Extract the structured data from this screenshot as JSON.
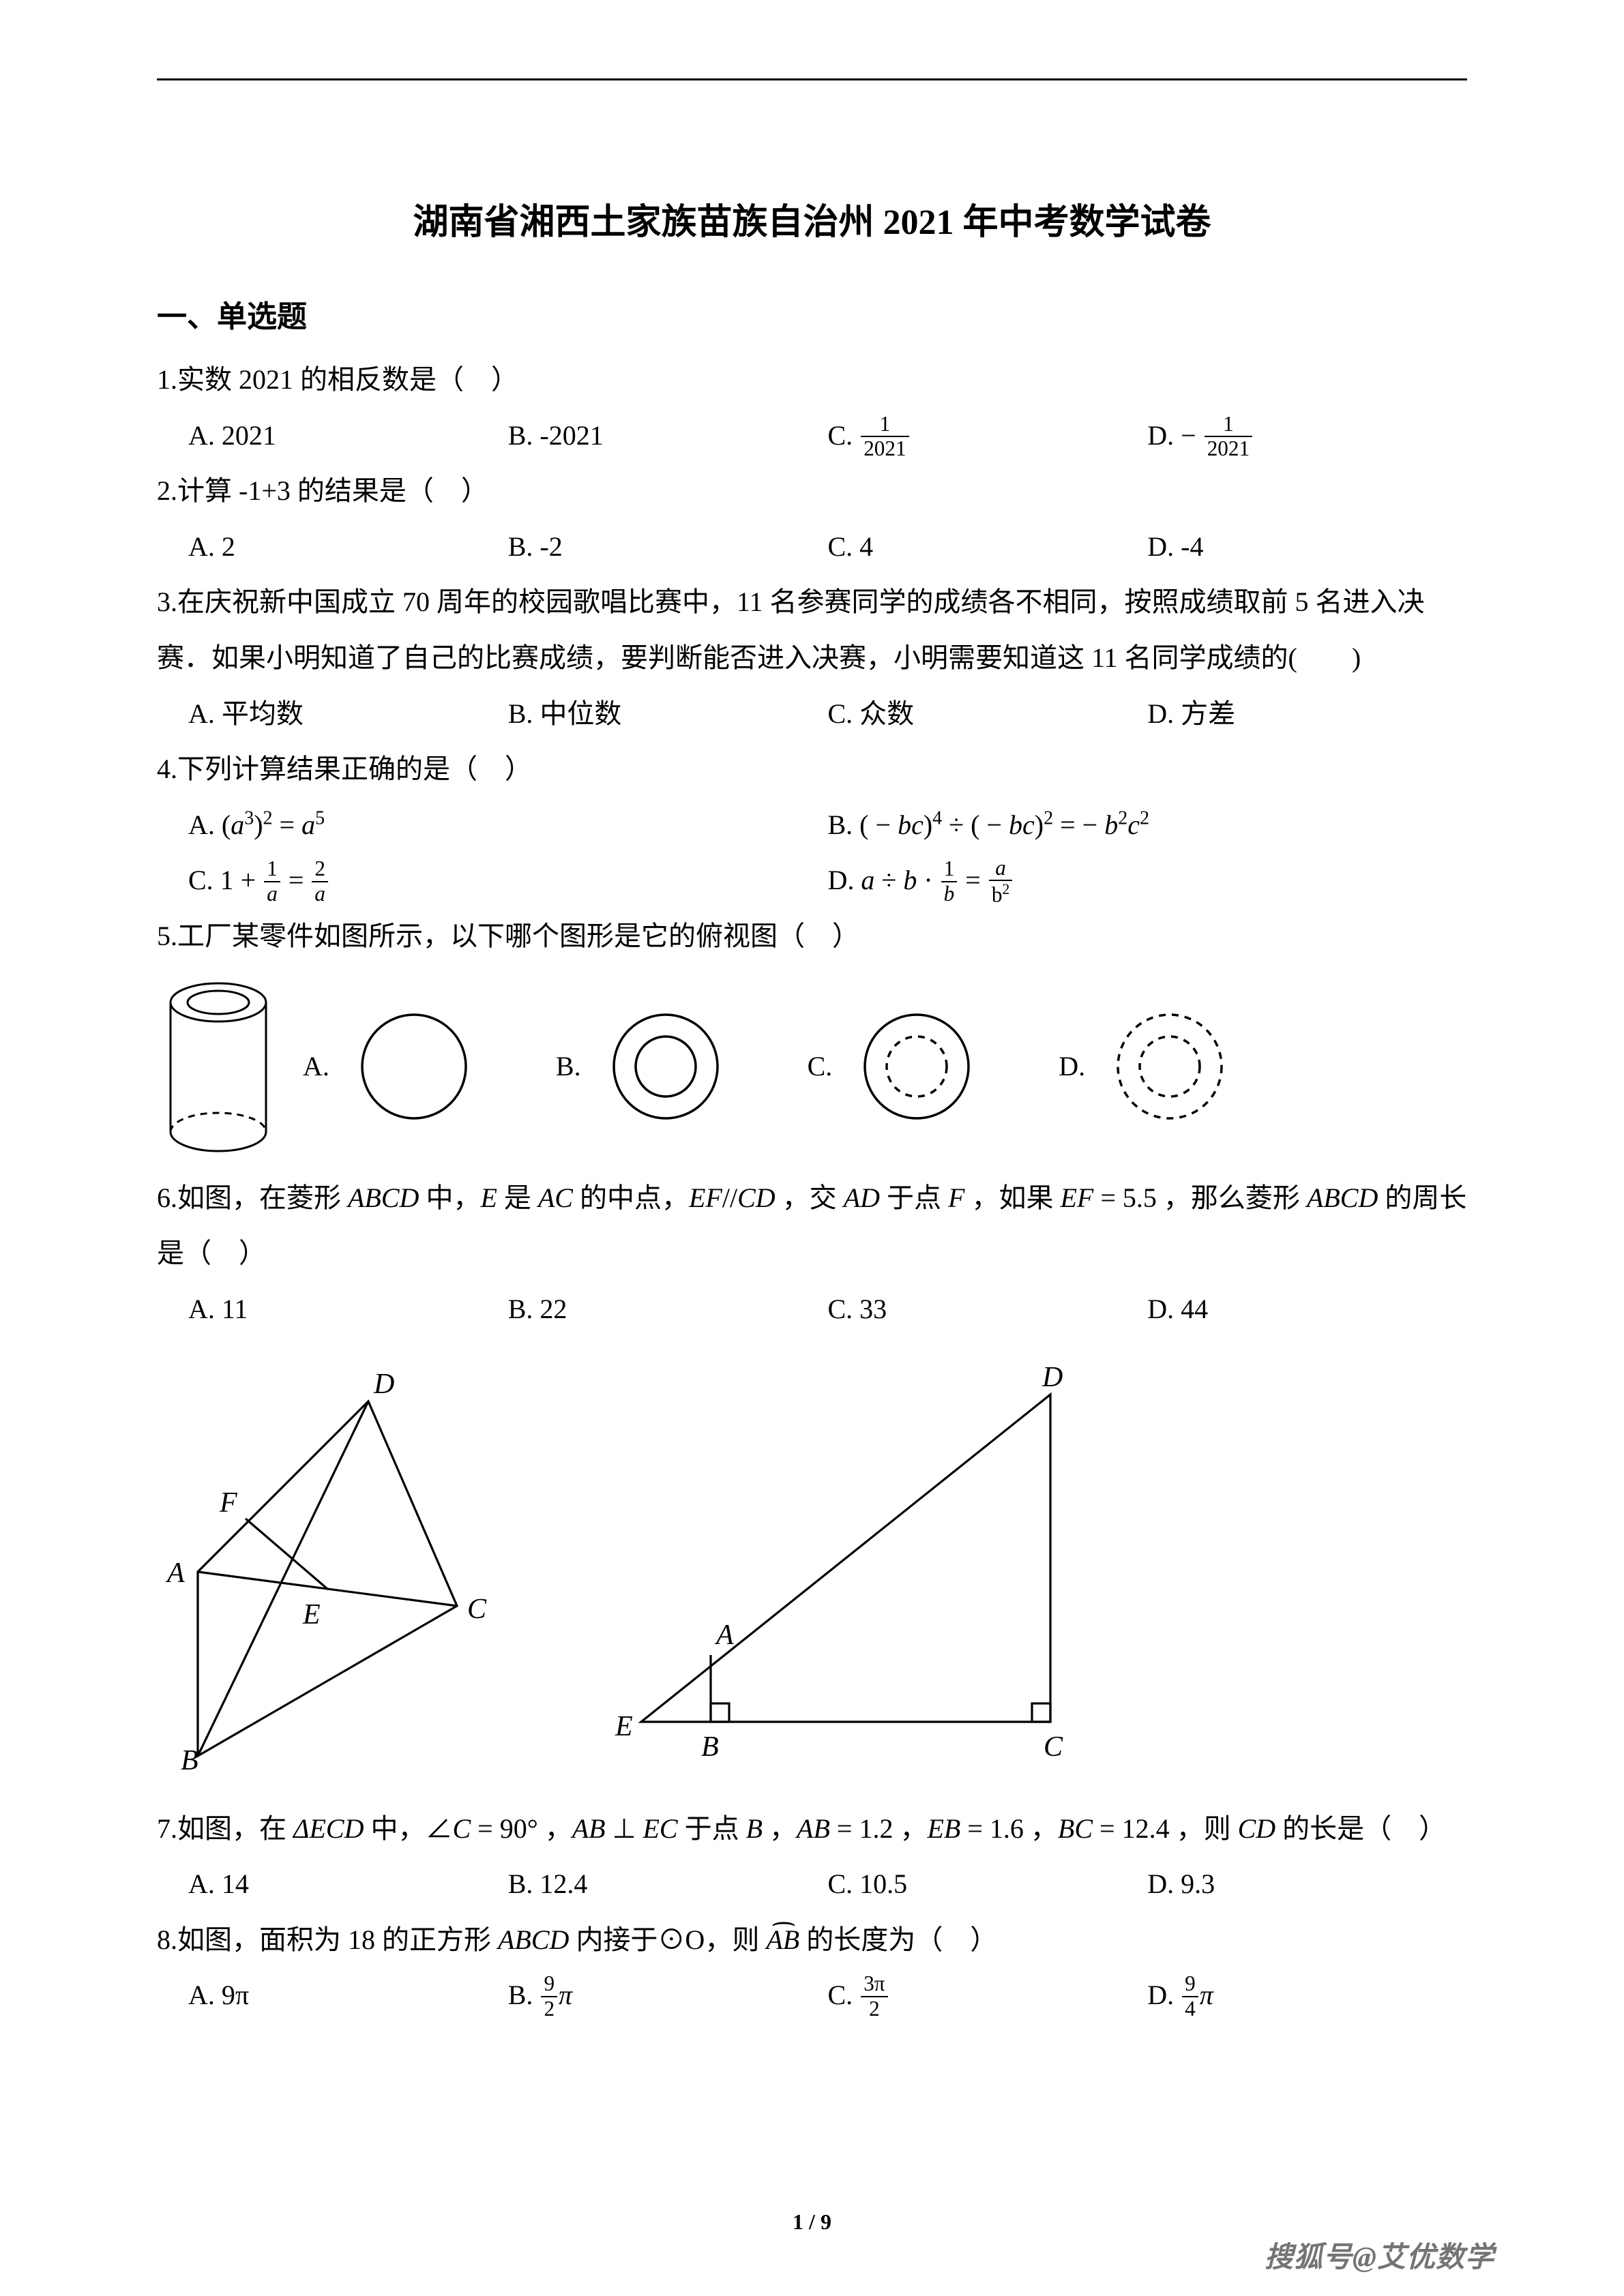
{
  "colors": {
    "text": "#000000",
    "background": "#ffffff",
    "stroke": "#000000",
    "watermark": "#3a3a3a"
  },
  "title": "湖南省湘西土家族苗族自治州 2021 年中考数学试卷",
  "section1": "一、单选题",
  "q1": {
    "stem": "1.实数 2021 的相反数是（　）",
    "A": "A. 2021",
    "B": "B. -2021",
    "C_prefix": "C. ",
    "C_num": "1",
    "C_den": "2021",
    "D_prefix": "D. − ",
    "D_num": "1",
    "D_den": "2021"
  },
  "q2": {
    "stem": "2.计算  -1+3  的结果是（　）",
    "A": "A. 2",
    "B": "B. -2",
    "C": "C. 4",
    "D": "D. -4"
  },
  "q3": {
    "stem": "3.在庆祝新中国成立 70 周年的校园歌唱比赛中，11 名参赛同学的成绩各不相同，按照成绩取前 5 名进入决赛．如果小明知道了自己的比赛成绩，要判断能否进入决赛，小明需要知道这 11 名同学成绩的(　　)",
    "A": "A. 平均数",
    "B": "B. 中位数",
    "C": "C. 众数",
    "D": "D. 方差"
  },
  "q4": {
    "stem": "4.下列计算结果正确的是（　）",
    "A_html": "A. (<span class='math-it'>a</span><span class='sup'>3</span>)<span class='sup'>2</span> = <span class='math-it'>a</span><span class='sup'>5</span>",
    "B_html": "B. ( − <span class='math-it'>bc</span>)<span class='sup'>4</span> ÷ ( − <span class='math-it'>bc</span>)<span class='sup'>2</span> = − <span class='math-it'>b</span><span class='sup'>2</span><span class='math-it'>c</span><span class='sup'>2</span>",
    "C_prefix": "C. 1 + ",
    "C_n1": "1",
    "C_d1": "a",
    "C_eq": " = ",
    "C_n2": "2",
    "C_d2": "a",
    "D_prefix": "D. <span class='math-it'>a</span> ÷ <span class='math-it'>b</span> · ",
    "D_n1": "1",
    "D_d1": "b",
    "D_eq": " = ",
    "D_n2": "a",
    "D_d2": "b<span class='sup'>2</span>"
  },
  "q5": {
    "stem": "5.工厂某零件如图所示，以下哪个图形是它的俯视图（　）",
    "labels": {
      "A": "A.",
      "B": "B.",
      "C": "C.",
      "D": "D."
    }
  },
  "q6": {
    "stem_html": "6.如图，在菱形 <span class='math-it'>ABCD</span> 中，<span class='math-it'>E</span> 是 <span class='math-it'>AC</span> 的中点，<span class='math-it'>EF</span>//<span class='math-it'>CD</span> ，交 <span class='math-it'>AD</span> 于点 <span class='math-it'>F</span> ，如果 <span class='math-it'>EF</span> = 5.5 ，那么菱形 <span class='math-it'>ABCD</span> 的周长是（　）",
    "A": "A. 11",
    "B": "B. 22",
    "C": "C. 33",
    "D": "D. 44",
    "fig1": {
      "A": "A",
      "B": "B",
      "C": "C",
      "D": "D",
      "E": "E",
      "F": "F"
    },
    "fig2": {
      "A": "A",
      "B": "B",
      "C": "C",
      "D": "D",
      "E": "E"
    }
  },
  "q7": {
    "stem_html": "7.如图，在 <span class='math-it'>ΔECD</span> 中，∠<span class='math-it'>C</span> = 90° ，<span class='math-it'>AB</span> ⊥ <span class='math-it'>EC</span> 于点 <span class='math-it'>B</span> ，<span class='math-it'>AB</span> = 1.2 ，<span class='math-it'>EB</span> = 1.6 ，<span class='math-it'>BC</span> = 12.4 ，则 <span class='math-it'>CD</span> 的长是（　）",
    "A": "A. 14",
    "B": "B. 12.4",
    "C": "C. 10.5",
    "D": "D. 9.3"
  },
  "q8": {
    "stem_html": "8.如图，面积为 18 的正方形 <span class='math-it'>ABCD</span> 内接于⊙O，则 <span class='overarc'><span class='math-it'>AB</span></span> 的长度为（　）",
    "A": "A. 9π",
    "B_prefix": "B. ",
    "B_n": "9",
    "B_d": "2",
    "B_suf": "π",
    "C_prefix": "C. ",
    "C_n": "3π",
    "C_d": "2",
    "D_prefix": "D. ",
    "D_n": "9",
    "D_d": "4",
    "D_suf": "π"
  },
  "pagenum": "1 / 9",
  "watermark": "搜狐号@艾优数学"
}
